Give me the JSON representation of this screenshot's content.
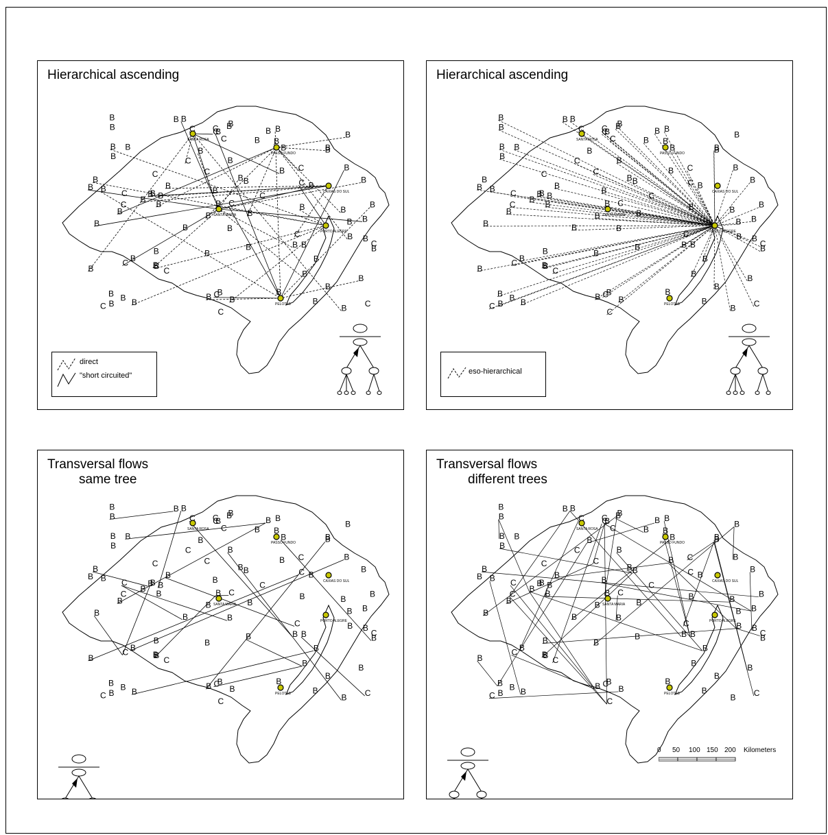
{
  "panels": [
    {
      "title": "Hierarchical ascending",
      "subtitle": ""
    },
    {
      "title": "Hierarchical ascending",
      "subtitle": ""
    },
    {
      "title": "Transversal flows",
      "subtitle": "same tree"
    },
    {
      "title": "Transversal flows",
      "subtitle": "different trees"
    }
  ],
  "legends": {
    "panel1": {
      "direct": "direct",
      "short": "\"short circuited\""
    },
    "panel2": {
      "eso": "eso-hierarchical"
    }
  },
  "scale": {
    "ticks": [
      "0",
      "50",
      "100",
      "150",
      "200"
    ],
    "unit": "Kilometers"
  },
  "cities": {
    "santa_rosa": "SANTA ROSA",
    "passo_fundo": "PASSO FUNDO",
    "caxias": "CAXIAS DO SUL",
    "santa_maria": "SANTA MARIA",
    "porto_alegre": "PORTO ALEGRE",
    "pelotas": "PELOTAS"
  },
  "map_symbols": {
    "B": "B",
    "C": "C"
  },
  "colors": {
    "line": "#000000",
    "hub": "#c8c800",
    "background": "#ffffff"
  }
}
